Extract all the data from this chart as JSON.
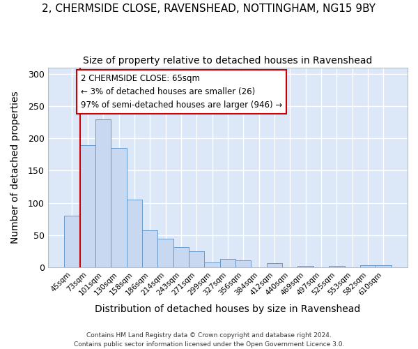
{
  "title_line1": "2, CHERMSIDE CLOSE, RAVENSHEAD, NOTTINGHAM, NG15 9BY",
  "title_line2": "Size of property relative to detached houses in Ravenshead",
  "xlabel": "Distribution of detached houses by size in Ravenshead",
  "ylabel": "Number of detached properties",
  "categories": [
    "45sqm",
    "73sqm",
    "101sqm",
    "130sqm",
    "158sqm",
    "186sqm",
    "214sqm",
    "243sqm",
    "271sqm",
    "299sqm",
    "327sqm",
    "356sqm",
    "384sqm",
    "412sqm",
    "440sqm",
    "469sqm",
    "497sqm",
    "525sqm",
    "553sqm",
    "582sqm",
    "610sqm"
  ],
  "values": [
    80,
    190,
    230,
    185,
    105,
    57,
    44,
    32,
    25,
    8,
    13,
    11,
    0,
    7,
    0,
    2,
    0,
    2,
    0,
    3,
    3
  ],
  "bar_color": "#c8d8f0",
  "bar_edge_color": "#6699cc",
  "background_color": "#dce8f8",
  "grid_color": "#ffffff",
  "annotation_text": "2 CHERMSIDE CLOSE: 65sqm\n← 3% of detached houses are smaller (26)\n97% of semi-detached houses are larger (946) →",
  "annotation_box_color": "#ffffff",
  "annotation_border_color": "#cc0000",
  "property_line_color": "#cc0000",
  "ylim": [
    0,
    310
  ],
  "yticks": [
    0,
    50,
    100,
    150,
    200,
    250,
    300
  ],
  "footnote_line1": "Contains HM Land Registry data © Crown copyright and database right 2024.",
  "footnote_line2": "Contains public sector information licensed under the Open Government Licence 3.0.",
  "title_fontsize": 11,
  "subtitle_fontsize": 10,
  "xlabel_fontsize": 10,
  "ylabel_fontsize": 10,
  "fig_bg": "#ffffff"
}
